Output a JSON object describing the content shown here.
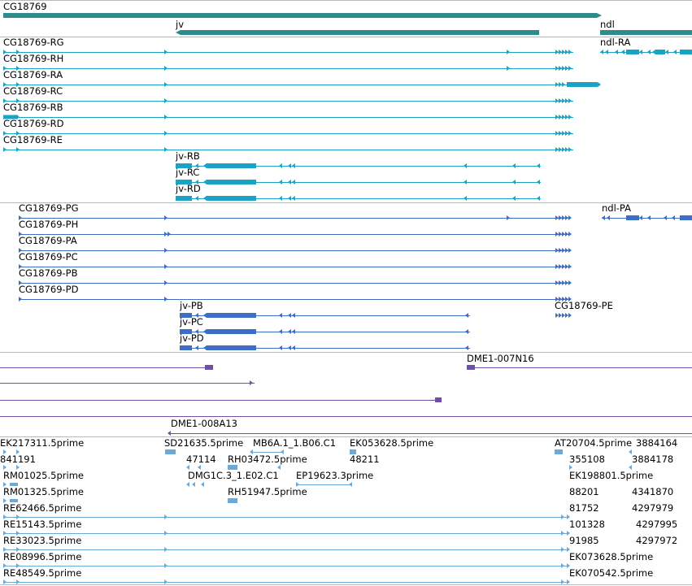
{
  "colors": {
    "gene": "#2e8b8b",
    "transcript": "#1aa3c4",
    "protein": "#3c6fc4",
    "clone": "#7050a6",
    "est": "#6aa9d8",
    "separator": "#b9b9b9"
  },
  "gene_track": {
    "genes": [
      {
        "name": "CG18769"
      },
      {
        "name": "jv"
      },
      {
        "name": "ndl"
      }
    ]
  },
  "transcript_track": {
    "transcripts": [
      {
        "name": "CG18769-RG"
      },
      {
        "name": "CG18769-RH"
      },
      {
        "name": "CG18769-RA"
      },
      {
        "name": "CG18769-RC"
      },
      {
        "name": "CG18769-RB"
      },
      {
        "name": "CG18769-RD"
      },
      {
        "name": "CG18769-RE"
      },
      {
        "name": "jv-RB"
      },
      {
        "name": "jv-RC"
      },
      {
        "name": "jv-RD"
      },
      {
        "name": "ndl-RA"
      }
    ]
  },
  "protein_track": {
    "proteins": [
      {
        "name": "CG18769-PG"
      },
      {
        "name": "CG18769-PH"
      },
      {
        "name": "CG18769-PA"
      },
      {
        "name": "CG18769-PC"
      },
      {
        "name": "CG18769-PB"
      },
      {
        "name": "CG18769-PD"
      },
      {
        "name": "jv-PB"
      },
      {
        "name": "jv-PC"
      },
      {
        "name": "jv-PD"
      },
      {
        "name": "CG18769-PE"
      },
      {
        "name": "ndl-PA"
      }
    ]
  },
  "clone_track": {
    "clones": [
      {
        "name": "DME1-007N16"
      },
      {
        "name": "DME1-008A13"
      }
    ]
  },
  "est_track": {
    "ests": [
      {
        "name": "EK217311.5prime"
      },
      {
        "name": "841191"
      },
      {
        "name": "RM01025.5prime"
      },
      {
        "name": "RM01325.5prime"
      },
      {
        "name": "RE62466.5prime"
      },
      {
        "name": "RE15143.5prime"
      },
      {
        "name": "RE33023.5prime"
      },
      {
        "name": "RE08996.5prime"
      },
      {
        "name": "RE48549.5prime"
      },
      {
        "name": "SD21635.5prime"
      },
      {
        "name": "47114"
      },
      {
        "name": "DMG1C.3_1.E02.C1"
      },
      {
        "name": "MB6A.1_1.B06.C1"
      },
      {
        "name": "RH03472.5prime"
      },
      {
        "name": "RH51947.5prime"
      },
      {
        "name": "EK053628.5prime"
      },
      {
        "name": "48211"
      },
      {
        "name": "EP19623.3prime"
      },
      {
        "name": "AT20704.5prime"
      },
      {
        "name": "3884164"
      },
      {
        "name": "355108"
      },
      {
        "name": "3884178"
      },
      {
        "name": "EK198801.5prime"
      },
      {
        "name": "88201"
      },
      {
        "name": "4341870"
      },
      {
        "name": "81752"
      },
      {
        "name": "4297979"
      },
      {
        "name": "101328"
      },
      {
        "name": "4297995"
      },
      {
        "name": "91985"
      },
      {
        "name": "4297972"
      },
      {
        "name": "EK073628.5prime"
      },
      {
        "name": "EK070542.5prime"
      }
    ]
  }
}
